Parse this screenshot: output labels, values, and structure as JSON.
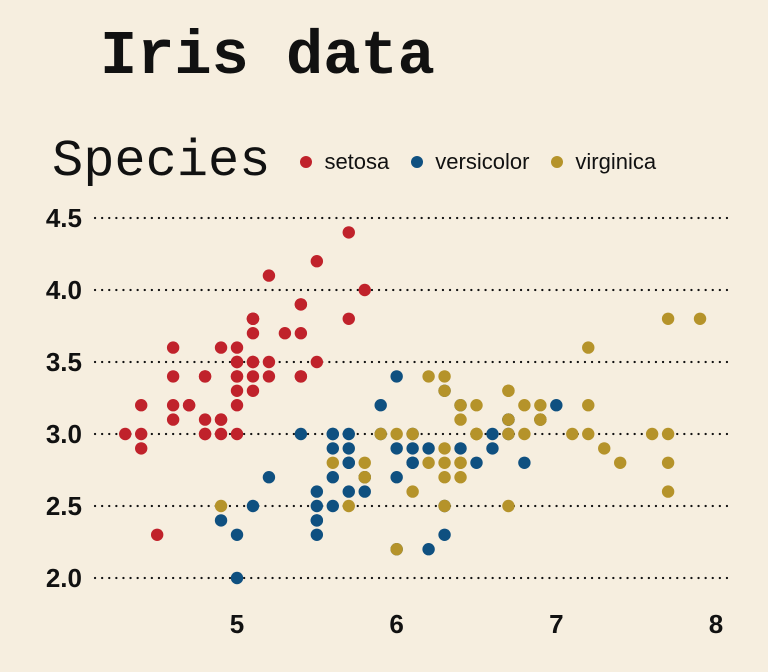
{
  "chart_data": {
    "type": "scatter",
    "title": "Iris data",
    "xlabel": "",
    "ylabel": "",
    "xlim": [
      4.2,
      8.0
    ],
    "ylim": [
      2.0,
      4.5
    ],
    "x_ticks": [
      5,
      6,
      7,
      8
    ],
    "y_ticks": [
      2.0,
      2.5,
      3.0,
      3.5,
      4.0,
      4.5
    ],
    "x_tick_labels": [
      "5",
      "6",
      "7",
      "8"
    ],
    "y_tick_labels": [
      "2.0",
      "2.5",
      "3.0",
      "3.5",
      "4.0",
      "4.5"
    ],
    "grid": "horizontal dotted",
    "legend_title": "Species",
    "legend_position": "top",
    "series": [
      {
        "name": "setosa",
        "color": "#c0222b",
        "points": [
          [
            5.1,
            3.5
          ],
          [
            4.9,
            3.0
          ],
          [
            4.7,
            3.2
          ],
          [
            4.6,
            3.1
          ],
          [
            5.0,
            3.6
          ],
          [
            5.4,
            3.9
          ],
          [
            4.6,
            3.4
          ],
          [
            5.0,
            3.4
          ],
          [
            4.4,
            2.9
          ],
          [
            4.9,
            3.1
          ],
          [
            5.4,
            3.7
          ],
          [
            4.8,
            3.4
          ],
          [
            4.8,
            3.0
          ],
          [
            4.3,
            3.0
          ],
          [
            5.8,
            4.0
          ],
          [
            5.7,
            4.4
          ],
          [
            5.4,
            3.9
          ],
          [
            5.1,
            3.5
          ],
          [
            5.7,
            3.8
          ],
          [
            5.1,
            3.8
          ],
          [
            5.4,
            3.4
          ],
          [
            5.1,
            3.7
          ],
          [
            4.6,
            3.6
          ],
          [
            5.1,
            3.3
          ],
          [
            4.8,
            3.4
          ],
          [
            5.0,
            3.0
          ],
          [
            5.0,
            3.4
          ],
          [
            5.2,
            3.5
          ],
          [
            5.2,
            3.4
          ],
          [
            4.7,
            3.2
          ],
          [
            4.8,
            3.1
          ],
          [
            5.4,
            3.4
          ],
          [
            5.2,
            4.1
          ],
          [
            5.5,
            4.2
          ],
          [
            4.9,
            3.1
          ],
          [
            5.0,
            3.2
          ],
          [
            5.5,
            3.5
          ],
          [
            4.9,
            3.6
          ],
          [
            4.4,
            3.0
          ],
          [
            5.1,
            3.4
          ],
          [
            5.0,
            3.5
          ],
          [
            4.5,
            2.3
          ],
          [
            4.4,
            3.2
          ],
          [
            5.0,
            3.5
          ],
          [
            5.1,
            3.8
          ],
          [
            4.8,
            3.0
          ],
          [
            5.1,
            3.8
          ],
          [
            4.6,
            3.2
          ],
          [
            5.3,
            3.7
          ],
          [
            5.0,
            3.3
          ]
        ]
      },
      {
        "name": "versicolor",
        "color": "#0f5080",
        "points": [
          [
            7.0,
            3.2
          ],
          [
            6.4,
            3.2
          ],
          [
            6.9,
            3.1
          ],
          [
            5.5,
            2.3
          ],
          [
            6.5,
            2.8
          ],
          [
            5.7,
            2.8
          ],
          [
            6.3,
            3.3
          ],
          [
            4.9,
            2.4
          ],
          [
            6.6,
            2.9
          ],
          [
            5.2,
            2.7
          ],
          [
            5.0,
            2.0
          ],
          [
            5.9,
            3.0
          ],
          [
            6.0,
            2.2
          ],
          [
            6.1,
            2.9
          ],
          [
            5.6,
            2.9
          ],
          [
            6.7,
            3.1
          ],
          [
            5.6,
            3.0
          ],
          [
            5.8,
            2.7
          ],
          [
            6.2,
            2.2
          ],
          [
            5.6,
            2.5
          ],
          [
            5.9,
            3.2
          ],
          [
            6.1,
            2.8
          ],
          [
            6.3,
            2.5
          ],
          [
            6.1,
            2.8
          ],
          [
            6.4,
            2.9
          ],
          [
            6.6,
            3.0
          ],
          [
            6.8,
            2.8
          ],
          [
            6.7,
            3.0
          ],
          [
            6.0,
            2.9
          ],
          [
            5.7,
            2.6
          ],
          [
            5.5,
            2.4
          ],
          [
            5.5,
            2.4
          ],
          [
            5.8,
            2.7
          ],
          [
            6.0,
            2.7
          ],
          [
            5.4,
            3.0
          ],
          [
            6.0,
            3.4
          ],
          [
            6.7,
            3.1
          ],
          [
            6.3,
            2.3
          ],
          [
            5.6,
            3.0
          ],
          [
            5.5,
            2.5
          ],
          [
            5.5,
            2.6
          ],
          [
            6.1,
            3.0
          ],
          [
            5.8,
            2.6
          ],
          [
            5.0,
            2.3
          ],
          [
            5.6,
            2.7
          ],
          [
            5.7,
            3.0
          ],
          [
            5.7,
            2.9
          ],
          [
            6.2,
            2.9
          ],
          [
            5.1,
            2.5
          ],
          [
            5.7,
            2.8
          ]
        ]
      },
      {
        "name": "virginica",
        "color": "#b5932a",
        "points": [
          [
            6.3,
            3.3
          ],
          [
            5.8,
            2.7
          ],
          [
            7.1,
            3.0
          ],
          [
            6.3,
            2.9
          ],
          [
            6.5,
            3.0
          ],
          [
            7.6,
            3.0
          ],
          [
            4.9,
            2.5
          ],
          [
            7.3,
            2.9
          ],
          [
            6.7,
            2.5
          ],
          [
            7.2,
            3.6
          ],
          [
            6.5,
            3.2
          ],
          [
            6.4,
            2.7
          ],
          [
            6.8,
            3.0
          ],
          [
            5.7,
            2.5
          ],
          [
            5.8,
            2.8
          ],
          [
            6.4,
            3.2
          ],
          [
            6.5,
            3.0
          ],
          [
            7.7,
            3.8
          ],
          [
            7.7,
            2.6
          ],
          [
            6.0,
            2.2
          ],
          [
            6.9,
            3.2
          ],
          [
            5.6,
            2.8
          ],
          [
            7.7,
            2.8
          ],
          [
            6.3,
            2.7
          ],
          [
            6.7,
            3.3
          ],
          [
            7.2,
            3.2
          ],
          [
            6.2,
            2.8
          ],
          [
            6.1,
            3.0
          ],
          [
            6.4,
            2.8
          ],
          [
            7.2,
            3.0
          ],
          [
            7.4,
            2.8
          ],
          [
            7.9,
            3.8
          ],
          [
            6.4,
            2.8
          ],
          [
            6.3,
            2.8
          ],
          [
            6.1,
            2.6
          ],
          [
            7.7,
            3.0
          ],
          [
            6.3,
            3.4
          ],
          [
            6.4,
            3.1
          ],
          [
            6.0,
            3.0
          ],
          [
            6.9,
            3.1
          ],
          [
            6.7,
            3.1
          ],
          [
            6.9,
            3.1
          ],
          [
            5.8,
            2.7
          ],
          [
            6.8,
            3.2
          ],
          [
            6.7,
            3.3
          ],
          [
            6.7,
            3.0
          ],
          [
            6.3,
            2.5
          ],
          [
            6.5,
            3.0
          ],
          [
            6.2,
            3.4
          ],
          [
            5.9,
            3.0
          ]
        ]
      }
    ]
  }
}
